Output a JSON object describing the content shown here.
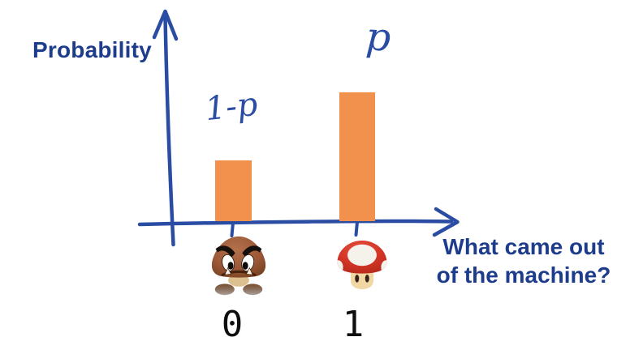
{
  "colors": {
    "background": "#ffffff",
    "axis_ink": "#2a4da3",
    "label_navy": "#1d3c8c",
    "digit": "#0e0e0e",
    "bar": "#f2914d"
  },
  "x_axis_label_lines": [
    "What came out",
    "of the machine?"
  ],
  "icons": [
    {
      "name": "goomba-icon",
      "outcome": "0"
    },
    {
      "name": "super-mushroom-icon",
      "outcome": "1"
    }
  ],
  "chart_data": {
    "type": "bar",
    "title": "",
    "ylabel": "Probability",
    "xlabel": "What came out of the machine?",
    "categories": [
      "0",
      "1"
    ],
    "values": [
      0.32,
      0.68
    ],
    "bar_labels": [
      "1-p",
      "p"
    ],
    "category_icons": [
      "goomba",
      "super-mushroom"
    ],
    "ylim": [
      0,
      1
    ],
    "bar_color": "#f2914d",
    "grid": false,
    "legend": false,
    "style": "hand-drawn blue axes with arrowheads; handwritten bar labels; tick marks under each bar"
  }
}
